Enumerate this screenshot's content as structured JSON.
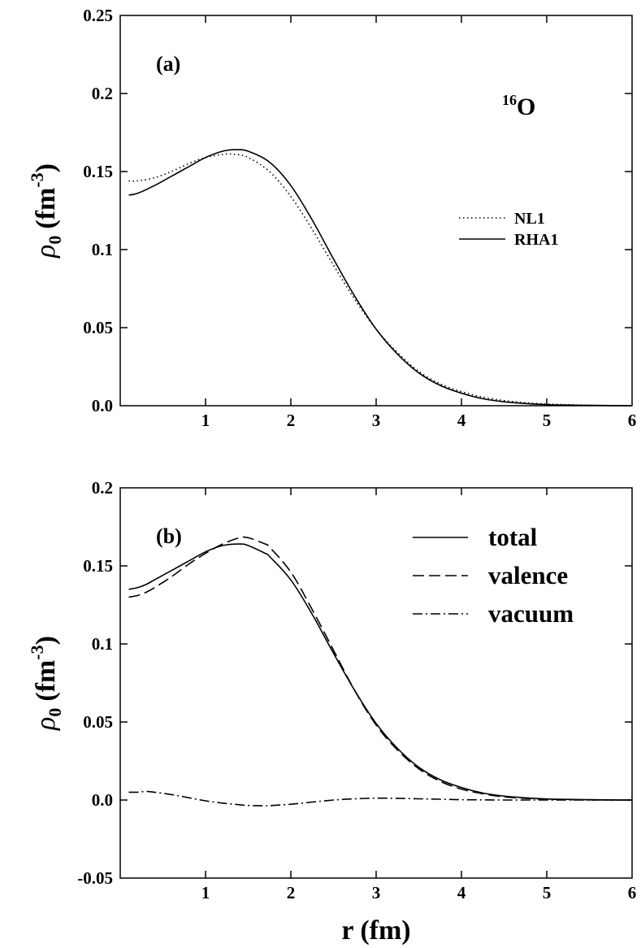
{
  "chart_data": [
    {
      "type": "line",
      "panel_label": "(a)",
      "annotation": {
        "mass": "16",
        "element": "O"
      },
      "ylabel": {
        "main": "ρ",
        "sub": "0",
        "unit": "(fm",
        "exp": "-3",
        "close": ")"
      },
      "xlabel": "",
      "xlim": [
        0,
        6
      ],
      "ylim": [
        0.0,
        0.25
      ],
      "x_ticks": [
        {
          "v": 1,
          "label": "1"
        },
        {
          "v": 2,
          "label": "2"
        },
        {
          "v": 3,
          "label": "3"
        },
        {
          "v": 4,
          "label": "4"
        },
        {
          "v": 5,
          "label": "5"
        },
        {
          "v": 6,
          "label": "6"
        }
      ],
      "y_ticks": [
        {
          "v": 0.0,
          "label": "0.0"
        },
        {
          "v": 0.05,
          "label": "0.05"
        },
        {
          "v": 0.1,
          "label": "0.1"
        },
        {
          "v": 0.15,
          "label": "0.15"
        },
        {
          "v": 0.2,
          "label": "0.2"
        },
        {
          "v": 0.25,
          "label": "0.25"
        }
      ],
      "legend_position": "right",
      "x": [
        0.1,
        0.2,
        0.4,
        0.6,
        0.8,
        1.0,
        1.2,
        1.35,
        1.5,
        1.75,
        2.0,
        2.25,
        2.5,
        2.75,
        3.0,
        3.25,
        3.5,
        3.75,
        4.0,
        4.25,
        4.5,
        4.75,
        5.0,
        5.25,
        5.5,
        5.75,
        6.0
      ],
      "series": [
        {
          "name": "NL1",
          "style": "dotted",
          "values": [
            0.144,
            0.144,
            0.146,
            0.15,
            0.155,
            0.159,
            0.161,
            0.161,
            0.159,
            0.15,
            0.134,
            0.113,
            0.09,
            0.068,
            0.049,
            0.034,
            0.022,
            0.014,
            0.009,
            0.0055,
            0.0033,
            0.0019,
            0.0011,
            0.0006,
            0.0003,
            0.0001,
            0.0
          ]
        },
        {
          "name": "RHA1",
          "style": "solid",
          "values": [
            0.135,
            0.136,
            0.141,
            0.147,
            0.153,
            0.159,
            0.163,
            0.164,
            0.163,
            0.156,
            0.141,
            0.119,
            0.094,
            0.07,
            0.049,
            0.033,
            0.021,
            0.013,
            0.008,
            0.0045,
            0.0025,
            0.0014,
            0.0007,
            0.0004,
            0.0002,
            0.0001,
            0.0
          ]
        }
      ]
    },
    {
      "type": "line",
      "panel_label": "(b)",
      "ylabel": {
        "main": "ρ",
        "sub": "0",
        "unit": "(fm",
        "exp": "-3",
        "close": ")"
      },
      "xlabel": "r (fm)",
      "xlim": [
        0,
        6
      ],
      "ylim": [
        -0.05,
        0.2
      ],
      "x_ticks": [
        {
          "v": 1,
          "label": "1"
        },
        {
          "v": 2,
          "label": "2"
        },
        {
          "v": 3,
          "label": "3"
        },
        {
          "v": 4,
          "label": "4"
        },
        {
          "v": 5,
          "label": "5"
        },
        {
          "v": 6,
          "label": "6"
        }
      ],
      "y_ticks": [
        {
          "v": -0.05,
          "label": "-0.05"
        },
        {
          "v": 0.0,
          "label": "0.0"
        },
        {
          "v": 0.05,
          "label": "0.05"
        },
        {
          "v": 0.1,
          "label": "0.1"
        },
        {
          "v": 0.15,
          "label": "0.15"
        },
        {
          "v": 0.2,
          "label": "0.2"
        }
      ],
      "legend_position": "top-right",
      "x": [
        0.1,
        0.2,
        0.3,
        0.4,
        0.6,
        0.8,
        1.0,
        1.2,
        1.4,
        1.5,
        1.7,
        1.75,
        2.0,
        2.25,
        2.5,
        2.75,
        3.0,
        3.25,
        3.5,
        3.75,
        4.0,
        4.25,
        4.5,
        4.75,
        5.0,
        5.25,
        5.5,
        5.75,
        6.0
      ],
      "series": [
        {
          "name": "total",
          "style": "solid",
          "values": [
            0.135,
            0.136,
            0.138,
            0.141,
            0.147,
            0.153,
            0.159,
            0.163,
            0.164,
            0.163,
            0.158,
            0.156,
            0.141,
            0.119,
            0.094,
            0.07,
            0.049,
            0.033,
            0.021,
            0.013,
            0.008,
            0.0045,
            0.0025,
            0.0014,
            0.0007,
            0.0004,
            0.0002,
            0.0001,
            0.0
          ]
        },
        {
          "name": "valence",
          "style": "dashed",
          "values": [
            0.13,
            0.131,
            0.133,
            0.136,
            0.143,
            0.151,
            0.158,
            0.164,
            0.168,
            0.168,
            0.164,
            0.162,
            0.146,
            0.122,
            0.096,
            0.07,
            0.048,
            0.032,
            0.02,
            0.012,
            0.007,
            0.004,
            0.002,
            0.0011,
            0.0005,
            0.0002,
            0.0001,
            0.0,
            0.0
          ]
        },
        {
          "name": "vacuum",
          "style": "dashdot",
          "values": [
            0.005,
            0.005,
            0.0055,
            0.005,
            0.0035,
            0.0015,
            -0.0005,
            -0.002,
            -0.003,
            -0.0035,
            -0.0037,
            -0.0036,
            -0.0027,
            -0.0013,
            0.0,
            0.0008,
            0.0012,
            0.0011,
            0.0008,
            0.0005,
            0.0002,
            0.0001,
            0.0,
            0.0,
            0.0,
            0.0,
            0.0,
            0.0,
            0.0
          ]
        }
      ]
    }
  ]
}
